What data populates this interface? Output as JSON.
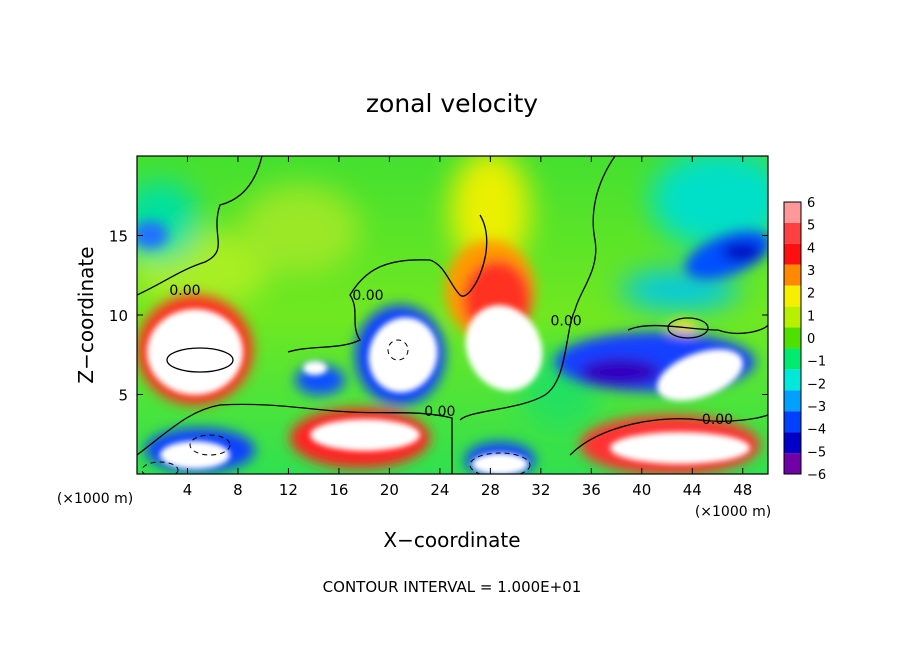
{
  "chart_data": {
    "type": "heatmap",
    "title": "zonal velocity",
    "xlabel": "X−coordinate",
    "ylabel": "Z−coordinate",
    "x_unit_left": "(×1000 m)",
    "x_unit_right": "(×1000 m)",
    "footer": "CONTOUR INTERVAL = 1.000E+01",
    "xlim": [
      0,
      50
    ],
    "ylim": [
      0,
      20
    ],
    "x_ticks": [
      4,
      8,
      12,
      16,
      20,
      24,
      28,
      32,
      36,
      40,
      44,
      48
    ],
    "x_tick_labels": [
      "4",
      "8",
      "12",
      "16",
      "20",
      "24",
      "28",
      "32",
      "36",
      "40",
      "44",
      "48"
    ],
    "y_ticks": [
      5,
      10,
      15
    ],
    "y_tick_labels": [
      "5",
      "10",
      "15"
    ],
    "colorbar": {
      "min": -6,
      "max": 6,
      "levels": [
        6,
        5,
        4,
        3,
        2,
        1,
        0,
        -1,
        -2,
        -3,
        -4,
        -5,
        -6
      ],
      "labels": [
        "6",
        "5",
        "4",
        "3",
        "2",
        "1",
        "0",
        "−1",
        "−2",
        "−3",
        "−4",
        "−5",
        "−6"
      ],
      "colors": [
        "#ff9898",
        "#ff4040",
        "#ff1010",
        "#ff8a00",
        "#f5f000",
        "#b8f000",
        "#50e000",
        "#00ea70",
        "#00e8d8",
        "#00a0ff",
        "#0040ff",
        "#0000c8",
        "#7000a8"
      ]
    },
    "contour_labels": [
      {
        "text": "0.00",
        "x": 3.8,
        "z": 11.5
      },
      {
        "text": "0.00",
        "x": 18.3,
        "z": 11.2
      },
      {
        "text": "0.00",
        "x": 24.0,
        "z": 3.9
      },
      {
        "text": "0.00",
        "x": 34.0,
        "z": 9.6
      },
      {
        "text": "0.00",
        "x": 46.0,
        "z": 3.4
      }
    ],
    "features": [
      {
        "name": "positive-core-left",
        "x": 5.5,
        "z": 8.5,
        "value": 10
      },
      {
        "name": "positive-core-center",
        "x": 21.3,
        "z": 7.5,
        "value": 10
      },
      {
        "name": "positive-core-right",
        "x": 28.8,
        "z": 8.6,
        "value": 10
      },
      {
        "name": "positive-core-far-right",
        "x": 42.5,
        "z": 6.3,
        "value": 10
      },
      {
        "name": "positive-bottom-band",
        "x": 21.0,
        "z": 2.0,
        "value": 10
      },
      {
        "name": "positive-bottom-right",
        "x": 42.0,
        "z": 1.5,
        "value": 10
      },
      {
        "name": "negative-lobe-right",
        "x": 44.5,
        "z": 14.0,
        "value": -6
      },
      {
        "name": "negative-lobe-left-top",
        "x": 1.0,
        "z": 15.0,
        "value": -5
      },
      {
        "name": "max-upper-center",
        "x": 28.5,
        "z": 12.0,
        "value": 5
      }
    ]
  }
}
